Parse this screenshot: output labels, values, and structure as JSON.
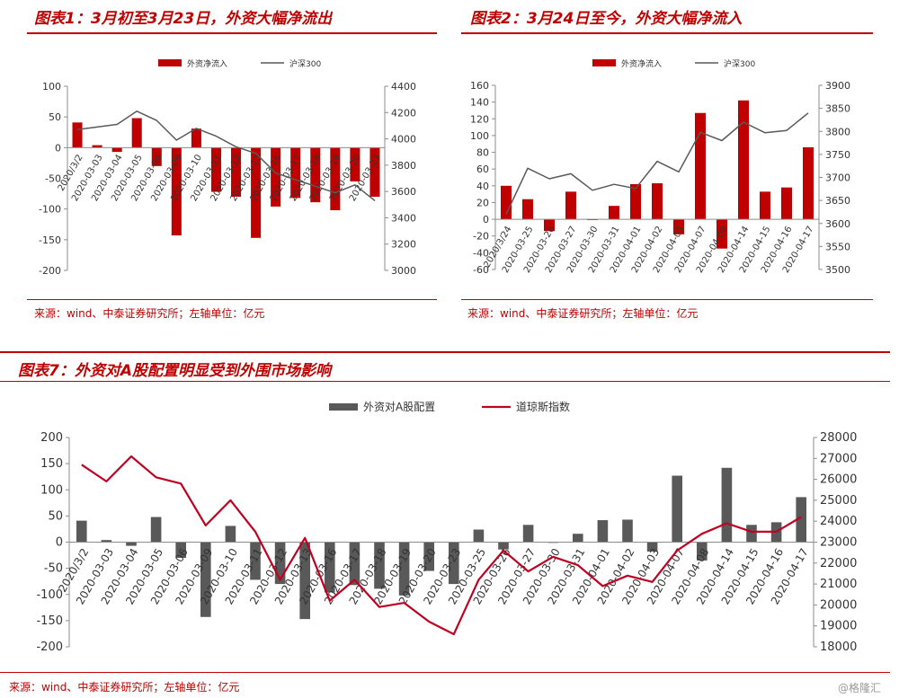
{
  "charts": {
    "c1": {
      "title": "图表1：3月初至3月23日，外资大幅净流出",
      "source": "来源：wind、中泰证券研究所；左轴单位：亿元"
    },
    "c2": {
      "title": "图表2：3月24日至今，外资大幅净流入",
      "source": "来源：wind、中泰证券研究所；左轴单位：亿元"
    },
    "c3": {
      "title": "图表7：外资对A股配置明显受到外围市场影响",
      "source": "来源：wind、中泰证券研究所；左轴单位：亿元"
    }
  },
  "watermark": "@格隆汇",
  "colors": {
    "bar_red": "#c00000",
    "bar_gray": "#595959",
    "line_gray": "#595959",
    "line_red": "#c00021",
    "title_red": "#c00000"
  },
  "chart_data": [
    {
      "type": "bar",
      "categories": [
        "2020/3/2",
        "2020-03-03",
        "2020-03-04",
        "2020-03-05",
        "2020-03-06",
        "2020-03-09",
        "2020-03-10",
        "2020-03-11",
        "2020-03-12",
        "2020-03-13",
        "2020-03-16",
        "2020-03-17",
        "2020-03-18",
        "2020-03-19",
        "2020-03-20",
        "2020-03-23"
      ],
      "series": [
        {
          "name": "外资净流入",
          "kind": "bar",
          "axis": "left",
          "values": [
            41,
            4,
            -7,
            48,
            -30,
            -143,
            31,
            -72,
            -80,
            -147,
            -96,
            -82,
            -89,
            -102,
            -55,
            -80
          ]
        },
        {
          "name": "沪深300",
          "kind": "line",
          "axis": "right",
          "values": [
            4070,
            4090,
            4110,
            4210,
            4140,
            3990,
            4080,
            4020,
            3940,
            3890,
            3740,
            3690,
            3640,
            3590,
            3650,
            3530
          ]
        }
      ],
      "ylim_left": [
        -200,
        100
      ],
      "yticks_left": [
        -200,
        -150,
        -100,
        -50,
        0,
        50,
        100
      ],
      "ylim_right": [
        3000,
        4400
      ],
      "yticks_right": [
        3000,
        3200,
        3400,
        3600,
        3800,
        4000,
        4200,
        4400
      ],
      "legend_placement": "top-center"
    },
    {
      "type": "bar",
      "categories": [
        "2020/3/24",
        "2020-03-25",
        "2020-03-26",
        "2020-03-27",
        "2020-03-30",
        "2020-03-31",
        "2020-04-01",
        "2020-04-02",
        "2020-04-03",
        "2020-04-07",
        "2020-04-08",
        "2020-04-14",
        "2020-04-15",
        "2020-04-16",
        "2020-04-17"
      ],
      "series": [
        {
          "name": "外资净流入",
          "kind": "bar",
          "axis": "left",
          "values": [
            40,
            24,
            -14,
            33,
            -1,
            16,
            42,
            43,
            -18,
            127,
            -35,
            142,
            33,
            38,
            86
          ]
        },
        {
          "name": "沪深300",
          "kind": "line",
          "axis": "right",
          "values": [
            3620,
            3720,
            3697,
            3708,
            3672,
            3685,
            3676,
            3735,
            3712,
            3798,
            3780,
            3820,
            3797,
            3802,
            3840
          ]
        }
      ],
      "ylim_left": [
        -60,
        160
      ],
      "yticks_left": [
        -60,
        -40,
        -20,
        0,
        20,
        40,
        60,
        80,
        100,
        120,
        140,
        160
      ],
      "ylim_right": [
        3500,
        3900
      ],
      "yticks_right": [
        3500,
        3550,
        3600,
        3650,
        3700,
        3750,
        3800,
        3850,
        3900
      ],
      "legend_placement": "top-center"
    },
    {
      "type": "bar",
      "categories": [
        "2020/3/2",
        "2020-03-03",
        "2020-03-04",
        "2020-03-05",
        "2020-03-06",
        "2020-03-09",
        "2020-03-10",
        "2020-03-11",
        "2020-03-12",
        "2020-03-13",
        "2020-03-16",
        "2020-03-17",
        "2020-03-18",
        "2020-03-19",
        "2020-03-20",
        "2020-03-23",
        "2020-03-25",
        "2020-03-26",
        "2020-03-27",
        "2020-03-30",
        "2020-03-31",
        "2020-04-01",
        "2020-04-02",
        "2020-04-03",
        "2020-04-07",
        "2020-04-08",
        "2020-04-14",
        "2020-04-15",
        "2020-04-16",
        "2020-04-17"
      ],
      "series": [
        {
          "name": "外资对A股配置",
          "kind": "bar",
          "axis": "left",
          "values": [
            41,
            4,
            -7,
            48,
            -30,
            -143,
            31,
            -72,
            -80,
            -147,
            -96,
            -82,
            -89,
            -102,
            -55,
            -80,
            24,
            -14,
            33,
            -1,
            16,
            42,
            43,
            -18,
            127,
            -35,
            142,
            33,
            38,
            86
          ]
        },
        {
          "name": "道琼斯指数",
          "kind": "line",
          "axis": "right",
          "values": [
            26700,
            25900,
            27100,
            26100,
            25800,
            23800,
            25000,
            23500,
            21200,
            23200,
            20200,
            21200,
            19900,
            20100,
            19200,
            18600,
            21200,
            22600,
            21600,
            22300,
            21900,
            20900,
            21400,
            21100,
            22600,
            23400,
            23900,
            23500,
            23500,
            24200
          ]
        }
      ],
      "ylim_left": [
        -200,
        200
      ],
      "yticks_left": [
        -200,
        -150,
        -100,
        -50,
        0,
        50,
        100,
        150,
        200
      ],
      "ylim_right": [
        18000,
        28000
      ],
      "yticks_right": [
        18000,
        19000,
        20000,
        21000,
        22000,
        23000,
        24000,
        25000,
        26000,
        27000,
        28000
      ],
      "legend_placement": "top-center"
    }
  ]
}
